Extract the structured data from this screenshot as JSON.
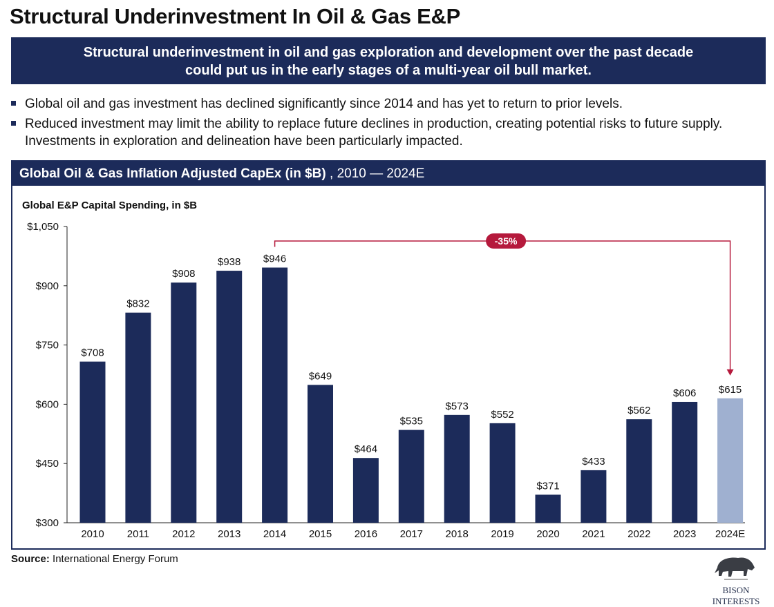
{
  "title": "Structural Underinvestment In Oil & Gas E&P",
  "banner": [
    "Structural underinvestment in oil and gas exploration and development over the past decade",
    "could put us in the early stages of a multi-year oil bull market."
  ],
  "bullets": [
    "Global oil and gas investment has declined significantly since 2014 and has yet to return to prior levels.",
    "Reduced investment may limit the ability to replace future declines in production, creating potential risks to future supply. Investments in exploration and delineation have been particularly impacted."
  ],
  "chart_header": {
    "bold": "Global Oil & Gas Inflation Adjusted CapEx (in $B)",
    "rest": " , 2010 — 2024E"
  },
  "source": {
    "label": "Source:",
    "text": " International Energy Forum"
  },
  "logo": "BISON INTERESTS",
  "colors": {
    "navy": "#1c2b5a",
    "estimate": "#9fb0d0",
    "accent": "#b5193c"
  },
  "chart_data": {
    "type": "bar",
    "title": "Global E&P Capital Spending, in $B",
    "xlabel": "",
    "ylabel": "",
    "categories": [
      "2010",
      "2011",
      "2012",
      "2013",
      "2014",
      "2015",
      "2016",
      "2017",
      "2018",
      "2019",
      "2020",
      "2021",
      "2022",
      "2023",
      "2024E"
    ],
    "values": [
      708,
      832,
      908,
      938,
      946,
      649,
      464,
      535,
      573,
      552,
      371,
      433,
      562,
      606,
      615
    ],
    "labels": [
      "$708",
      "$832",
      "$908",
      "$938",
      "$946",
      "$649",
      "$464",
      "$535",
      "$573",
      "$552",
      "$371",
      "$433",
      "$562",
      "$606",
      "$615"
    ],
    "estimated": [
      false,
      false,
      false,
      false,
      false,
      false,
      false,
      false,
      false,
      false,
      false,
      false,
      false,
      false,
      true
    ],
    "ylim": [
      300,
      1050
    ],
    "yticks": [
      300,
      450,
      600,
      750,
      900,
      1050
    ],
    "ytick_labels": [
      "$300",
      "$450",
      "$600",
      "$750",
      "$900",
      "$1,050"
    ],
    "annotation": {
      "text": "-35%",
      "from": "2014",
      "to": "2024E"
    },
    "grid": false
  }
}
